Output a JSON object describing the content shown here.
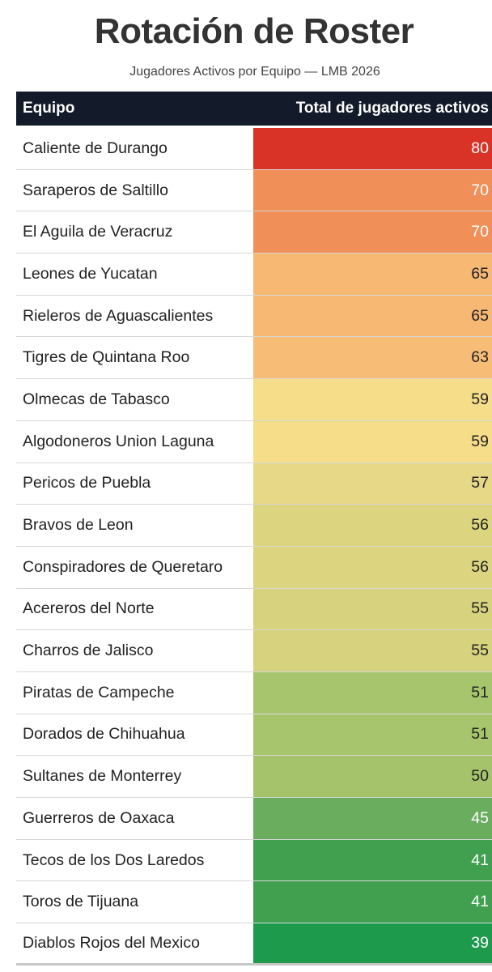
{
  "header": {
    "title": "Rotación de Roster",
    "subtitle": "Jugadores Activos por Equipo — LMB 2026"
  },
  "table": {
    "columns": [
      "Equipo",
      "Total de jugadores activos"
    ],
    "rows": [
      [
        "Caliente de Durango",
        80
      ],
      [
        "Saraperos de Saltillo",
        70
      ],
      [
        "El Aguila de Veracruz",
        70
      ],
      [
        "Leones de Yucatan",
        65
      ],
      [
        "Rieleros de Aguascalientes",
        65
      ],
      [
        "Tigres de Quintana Roo",
        63
      ],
      [
        "Olmecas de Tabasco",
        59
      ],
      [
        "Algodoneros Union Laguna",
        59
      ],
      [
        "Pericos de Puebla",
        57
      ],
      [
        "Bravos de Leon",
        56
      ],
      [
        "Conspiradores de Queretaro",
        56
      ],
      [
        "Acereros del Norte",
        55
      ],
      [
        "Charros de Jalisco",
        55
      ],
      [
        "Piratas de Campeche",
        51
      ],
      [
        "Dorados de Chihuahua",
        51
      ],
      [
        "Sultanes de Monterrey",
        50
      ],
      [
        "Guerreros de Oaxaca",
        45
      ],
      [
        "Tecos de los Dos Laredos",
        41
      ],
      [
        "Toros de Tijuana",
        41
      ],
      [
        "Diablos Rojos del Mexico",
        39
      ]
    ],
    "cell_colors": [
      "#d93328",
      "#f08f57",
      "#f08f57",
      "#f7b874",
      "#f7b874",
      "#f7bd77",
      "#f6dd8a",
      "#f6dd8a",
      "#e6d886",
      "#dcd47f",
      "#dcd47f",
      "#d6d27d",
      "#d6d27d",
      "#a7c56c",
      "#a7c56c",
      "#a4c36b",
      "#6aad5e",
      "#40a050",
      "#40a050",
      "#1e9a4d"
    ]
  }
}
